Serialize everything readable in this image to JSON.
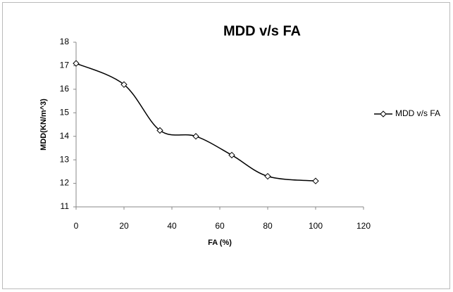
{
  "chart_data": {
    "type": "line",
    "title": "MDD v/s FA",
    "x_label": "FA (%)",
    "y_label": "MDD(KN/m^3)",
    "x": [
      0,
      20,
      35,
      50,
      65,
      80,
      100
    ],
    "series": [
      {
        "name": "MDD v/s FA",
        "color": "#000000",
        "values": [
          17.1,
          16.2,
          14.25,
          14.0,
          13.2,
          12.3,
          12.1
        ]
      }
    ],
    "xlim": [
      0,
      120
    ],
    "xticks": [
      0,
      20,
      40,
      60,
      80,
      100,
      120
    ],
    "ylim": [
      11,
      18
    ],
    "yticks": [
      11,
      12,
      13,
      14,
      15,
      16,
      17,
      18
    ],
    "grid": false,
    "smooth": true,
    "marker": "diamond",
    "legend": "right"
  }
}
